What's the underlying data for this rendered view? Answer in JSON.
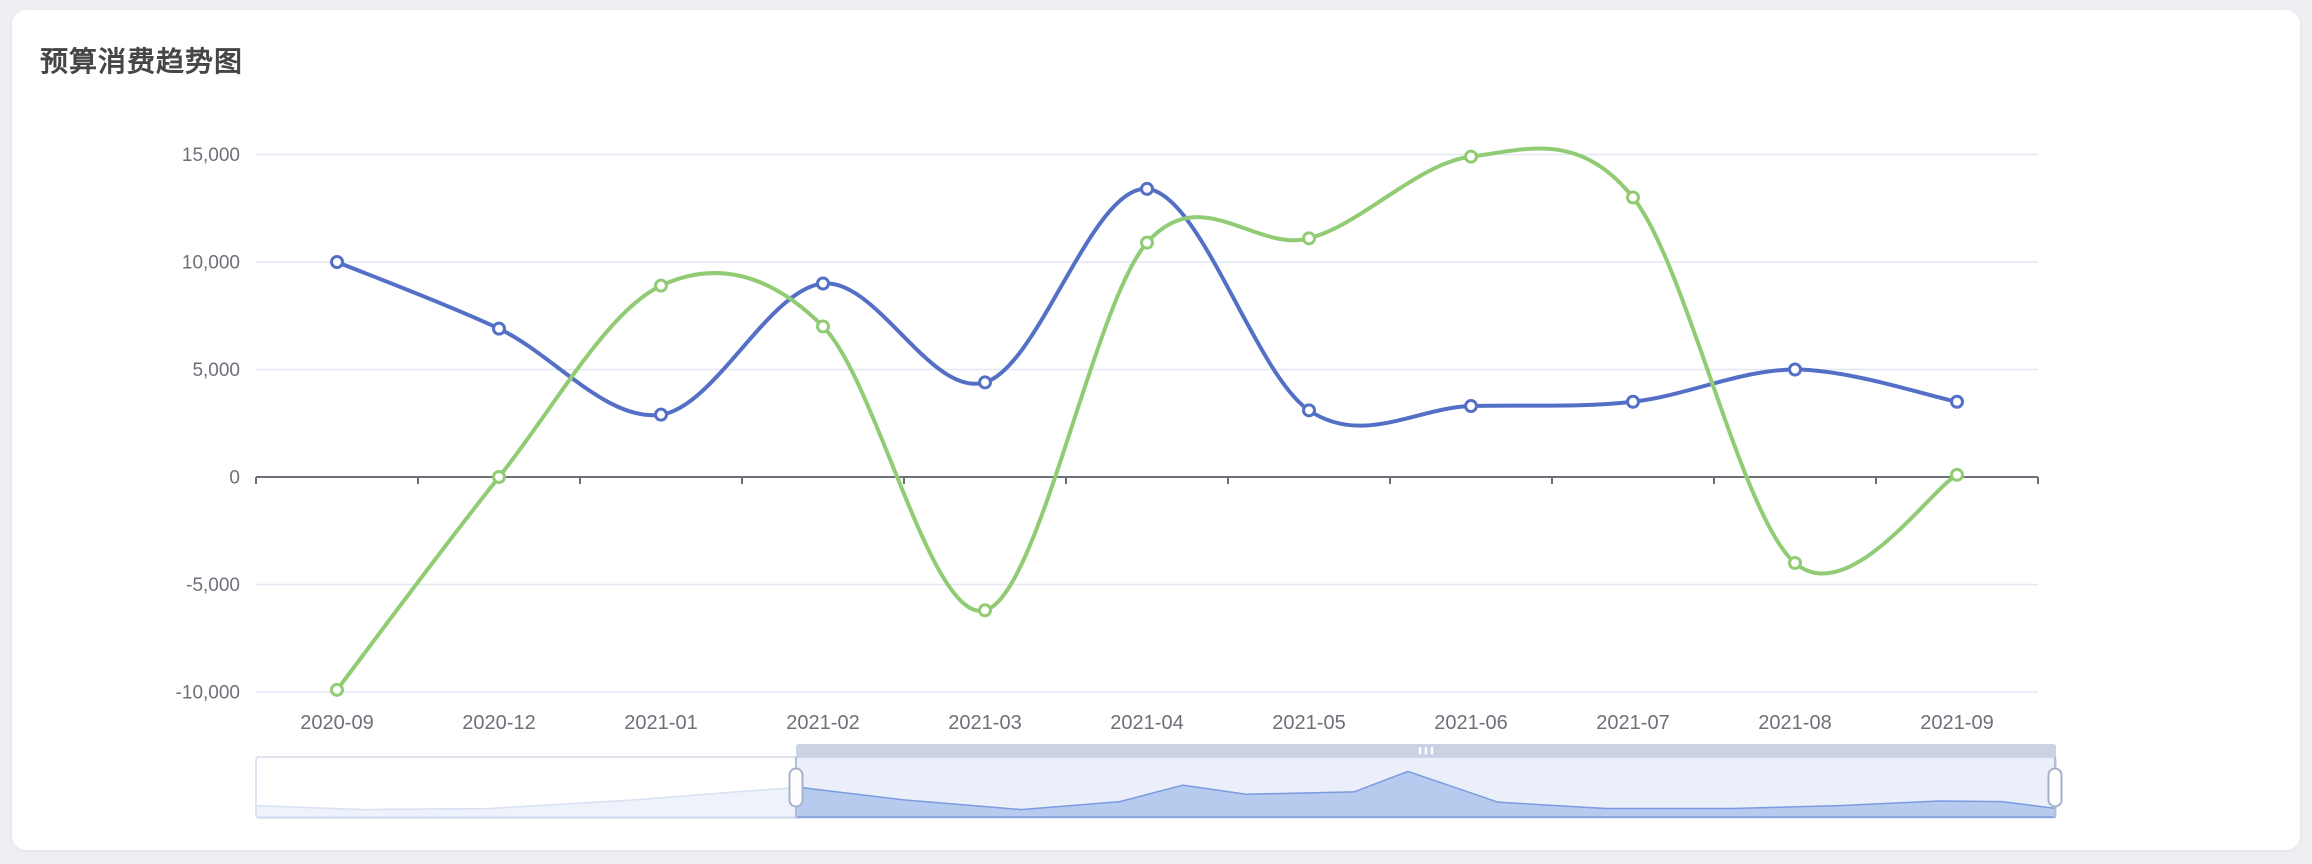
{
  "page": {
    "title": "预算消费趋势图"
  },
  "chart_data": {
    "type": "line",
    "title": "预算消费趋势图",
    "legend": "none",
    "grid": true,
    "smooth": true,
    "symbol": "hollow-circle",
    "categories": [
      "2020-09",
      "2020-12",
      "2021-01",
      "2021-02",
      "2021-03",
      "2021-04",
      "2021-05",
      "2021-06",
      "2021-07",
      "2021-08",
      "2021-09"
    ],
    "series": [
      {
        "name": "blue",
        "color": "#5470c6",
        "values": [
          10000,
          6900,
          2900,
          9000,
          4400,
          13400,
          3100,
          3300,
          3500,
          5000,
          3500
        ]
      },
      {
        "name": "green",
        "color": "#91cc75",
        "values": [
          -9900,
          0,
          8900,
          7000,
          -6200,
          10900,
          11100,
          14900,
          13000,
          -4000,
          100
        ]
      }
    ],
    "ylim": [
      -10000,
      15000
    ],
    "yticks": [
      {
        "value": 15000,
        "label": "15,000"
      },
      {
        "value": 10000,
        "label": "10,000"
      },
      {
        "value": 5000,
        "label": "5,000"
      },
      {
        "value": 0,
        "label": "0"
      },
      {
        "value": -5000,
        "label": "-5,000"
      },
      {
        "value": -10000,
        "label": "-10,000"
      }
    ],
    "datazoom": {
      "start_percent": 30,
      "end_percent": 100,
      "grip_glyph": "|||",
      "shadow_points": [
        [
          0.0,
          0.2
        ],
        [
          0.06,
          0.13
        ],
        [
          0.13,
          0.15
        ],
        [
          0.21,
          0.3
        ],
        [
          0.27,
          0.45
        ],
        [
          0.302,
          0.52
        ],
        [
          0.36,
          0.3
        ],
        [
          0.425,
          0.13
        ],
        [
          0.48,
          0.27
        ],
        [
          0.515,
          0.56
        ],
        [
          0.55,
          0.4
        ],
        [
          0.61,
          0.44
        ],
        [
          0.64,
          0.8
        ],
        [
          0.69,
          0.26
        ],
        [
          0.75,
          0.15
        ],
        [
          0.82,
          0.15
        ],
        [
          0.88,
          0.2
        ],
        [
          0.935,
          0.28
        ],
        [
          0.97,
          0.27
        ],
        [
          1.0,
          0.15
        ]
      ]
    }
  },
  "colors": {
    "axis_label": "#6e7079",
    "axis_line": "#6e7079",
    "grid_line": "#e2e7f2",
    "title_text": "#464646",
    "card_bg": "#ffffff",
    "page_bg": "#edeff3",
    "slider_border": "#d3daeb",
    "slider_filler": "rgba(116,150,217,0.15)",
    "slider_shadow_line_unselected": "#d8e0f2",
    "slider_shadow_fill_unselected": "#eef2fa",
    "slider_shadow_line_selected": "#7b9be0",
    "slider_shadow_fill_selected": "rgba(141,173,232,0.55)",
    "slider_move_strip": "#cbd2e4",
    "slider_handle_fill": "#fefefe",
    "slider_handle_border": "#a6b1cc"
  }
}
